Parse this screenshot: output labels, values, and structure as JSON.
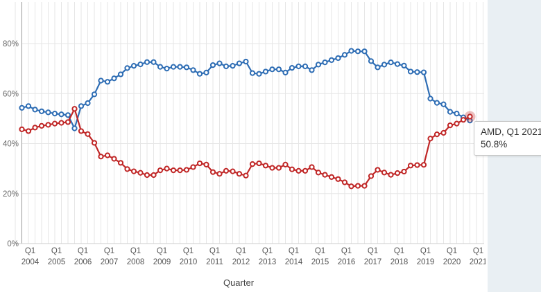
{
  "page": {
    "background_color": "#ffffff",
    "side_panel_color": "#e9eff3"
  },
  "chart_data": {
    "type": "line",
    "title": "",
    "xlabel": "Quarter",
    "ylabel": "",
    "x_range": [
      "Q1 2004",
      "Q1 2021"
    ],
    "x_frequency": "quarterly",
    "ylim": [
      0,
      96
    ],
    "grid": "both",
    "legend_position": "none",
    "y_ticks": [
      {
        "label": "0%",
        "value": 0
      },
      {
        "label": "20%",
        "value": 20
      },
      {
        "label": "40%",
        "value": 40
      },
      {
        "label": "60%",
        "value": 60
      },
      {
        "label": "80%",
        "value": 80
      }
    ],
    "x_tick_labels": [
      {
        "quarter": "Q1",
        "year": "2004"
      },
      {
        "quarter": "Q1",
        "year": "2005"
      },
      {
        "quarter": "Q1",
        "year": "2006"
      },
      {
        "quarter": "Q1",
        "year": "2007"
      },
      {
        "quarter": "Q1",
        "year": "2008"
      },
      {
        "quarter": "Q1",
        "year": "2009"
      },
      {
        "quarter": "Q1",
        "year": "2010"
      },
      {
        "quarter": "Q1",
        "year": "2011"
      },
      {
        "quarter": "Q1",
        "year": "2012"
      },
      {
        "quarter": "Q1",
        "year": "2013"
      },
      {
        "quarter": "Q1",
        "year": "2014"
      },
      {
        "quarter": "Q1",
        "year": "2015"
      },
      {
        "quarter": "Q1",
        "year": "2016"
      },
      {
        "quarter": "Q1",
        "year": "2017"
      },
      {
        "quarter": "Q1",
        "year": "2018"
      },
      {
        "quarter": "Q1",
        "year": "2019"
      },
      {
        "quarter": "Q1",
        "year": "2020"
      },
      {
        "quarter": "Q1",
        "year": "2021"
      }
    ],
    "categories": [
      "Q1 2004",
      "Q2 2004",
      "Q3 2004",
      "Q4 2004",
      "Q1 2005",
      "Q2 2005",
      "Q3 2005",
      "Q4 2005",
      "Q1 2006",
      "Q2 2006",
      "Q3 2006",
      "Q4 2006",
      "Q1 2007",
      "Q2 2007",
      "Q3 2007",
      "Q4 2007",
      "Q1 2008",
      "Q2 2008",
      "Q3 2008",
      "Q4 2008",
      "Q1 2009",
      "Q2 2009",
      "Q3 2009",
      "Q4 2009",
      "Q1 2010",
      "Q2 2010",
      "Q3 2010",
      "Q4 2010",
      "Q1 2011",
      "Q2 2011",
      "Q3 2011",
      "Q4 2011",
      "Q1 2012",
      "Q2 2012",
      "Q3 2012",
      "Q4 2012",
      "Q1 2013",
      "Q2 2013",
      "Q3 2013",
      "Q4 2013",
      "Q1 2014",
      "Q2 2014",
      "Q3 2014",
      "Q4 2014",
      "Q1 2015",
      "Q2 2015",
      "Q3 2015",
      "Q4 2015",
      "Q1 2016",
      "Q2 2016",
      "Q3 2016",
      "Q4 2016",
      "Q1 2017",
      "Q2 2017",
      "Q3 2017",
      "Q4 2017",
      "Q1 2018",
      "Q2 2018",
      "Q3 2018",
      "Q4 2018",
      "Q1 2019",
      "Q2 2019",
      "Q3 2019",
      "Q4 2019",
      "Q1 2020",
      "Q2 2020",
      "Q3 2020",
      "Q4 2020",
      "Q1 2021"
    ],
    "series": [
      {
        "name": "",
        "color_name": "blue",
        "color": "#2e6db4",
        "marker": "open-circle",
        "values": [
          54.3,
          55.0,
          53.6,
          52.9,
          52.5,
          52.0,
          51.7,
          51.4,
          46.1,
          55.0,
          56.2,
          59.7,
          65.2,
          64.7,
          66.1,
          67.7,
          70.2,
          71.1,
          71.7,
          72.6,
          72.6,
          70.7,
          70.0,
          70.7,
          70.7,
          70.5,
          69.4,
          67.9,
          68.4,
          71.4,
          72.1,
          70.9,
          71.1,
          72.1,
          72.8,
          68.2,
          67.9,
          68.8,
          69.7,
          69.7,
          68.4,
          70.3,
          70.9,
          70.9,
          69.4,
          71.6,
          72.5,
          73.4,
          74.2,
          75.5,
          77.1,
          76.9,
          76.9,
          73.0,
          70.5,
          71.6,
          72.5,
          71.8,
          71.2,
          68.8,
          68.6,
          68.5,
          58.0,
          56.3,
          55.7,
          52.7,
          52.0,
          50.5,
          49.2
        ]
      },
      {
        "name": "AMD",
        "color_name": "red",
        "color": "#c02727",
        "marker": "open-circle",
        "highlight_last_point": true,
        "values": [
          45.7,
          45.0,
          46.4,
          47.1,
          47.5,
          48.0,
          48.3,
          48.6,
          53.9,
          45.0,
          43.8,
          40.3,
          34.8,
          35.3,
          33.9,
          32.3,
          29.8,
          28.9,
          28.3,
          27.4,
          27.4,
          29.3,
          30.0,
          29.3,
          29.3,
          29.5,
          30.6,
          32.1,
          31.6,
          28.6,
          27.9,
          29.1,
          28.9,
          27.9,
          27.2,
          31.8,
          32.1,
          31.2,
          30.3,
          30.3,
          31.6,
          29.7,
          29.1,
          29.1,
          30.6,
          28.4,
          27.5,
          26.6,
          25.8,
          24.5,
          22.9,
          23.1,
          23.1,
          27.0,
          29.5,
          28.4,
          27.5,
          28.2,
          28.8,
          31.2,
          31.4,
          31.5,
          42.0,
          43.7,
          44.3,
          47.3,
          48.0,
          49.5,
          50.8
        ]
      }
    ],
    "tooltip": {
      "line1": "AMD, Q1 2021,",
      "line2": "50.8%"
    },
    "colors": {
      "gridline": "#e6e6e6",
      "y_axis_line": "#999999",
      "x_axis_line": "#cccccc",
      "tooltip_border": "#c6c6c6",
      "tooltip_text": "#333333"
    }
  }
}
